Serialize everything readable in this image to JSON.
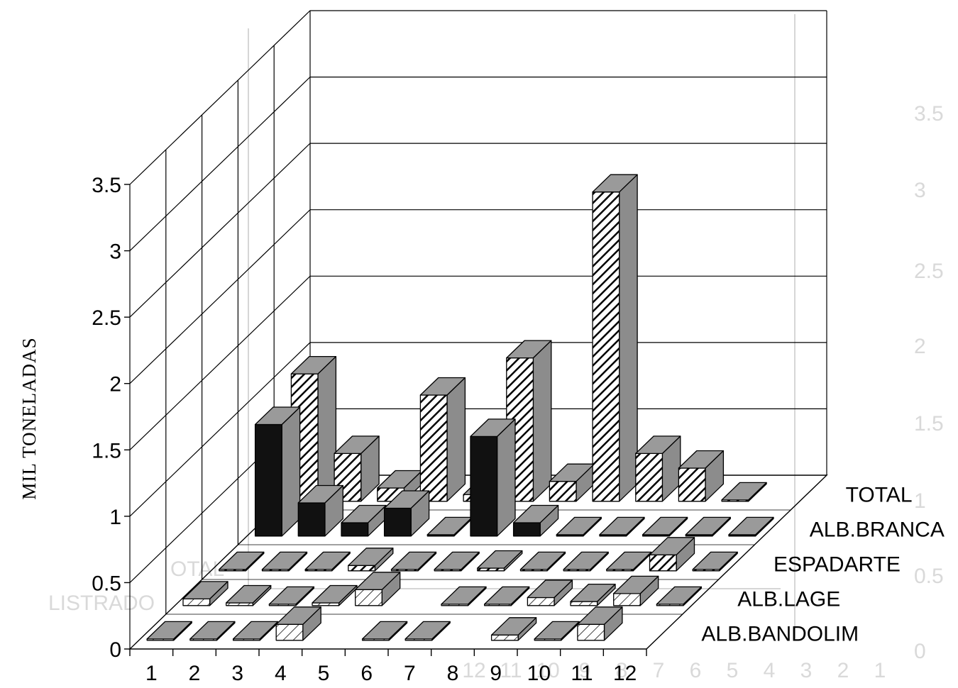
{
  "chart_data": {
    "type": "bar",
    "title": "",
    "xlabel": "",
    "ylabel": "MIL TONELADAS",
    "ylim": [
      0,
      3.5
    ],
    "yticks": [
      "0",
      "0.5",
      "1",
      "1.5",
      "2",
      "2.5",
      "3",
      "3.5"
    ],
    "categories": [
      "1",
      "2",
      "3",
      "4",
      "5",
      "6",
      "7",
      "8",
      "9",
      "10",
      "11",
      "12"
    ],
    "series": [
      {
        "name": "ALB.BANDOLIM",
        "values": [
          0.01,
          0.01,
          0.01,
          0.12,
          null,
          0.01,
          0.01,
          null,
          0.04,
          0.01,
          0.12,
          null
        ]
      },
      {
        "name": "ALB.LAGE",
        "values": [
          0.05,
          0.02,
          0.01,
          0.02,
          0.12,
          null,
          0.01,
          0.01,
          0.06,
          0.03,
          0.09,
          0.01
        ]
      },
      {
        "name": "ESPADARTE",
        "values": [
          0.01,
          0.01,
          0.01,
          0.04,
          0.01,
          0.01,
          0.02,
          0.01,
          0.01,
          0.01,
          0.12,
          0.01
        ]
      },
      {
        "name": "ALB.BRANCA",
        "values": [
          0.84,
          0.25,
          0.1,
          0.21,
          0.01,
          0.75,
          0.1,
          0.01,
          0.01,
          0.01,
          0.01,
          0.01
        ]
      },
      {
        "name": "TOTAL",
        "values": [
          0.96,
          0.36,
          0.1,
          0.8,
          0.05,
          1.08,
          0.15,
          2.33,
          0.36,
          0.25,
          0.01,
          null
        ]
      }
    ],
    "series_fills": {
      "ALB.BANDOLIM": "hatch-light",
      "ALB.LAGE": "hatch-light",
      "ESPADARTE": "hatch-dense",
      "ALB.BRANCA": "solid-black",
      "TOTAL": "hatch-dense"
    },
    "colors": {
      "side": "#8c8c8c",
      "top": "#9a9a9a",
      "lines": "#000000",
      "ghost": "#d6d6d6"
    }
  },
  "ghost_bleedthrough": {
    "y_ticks": [
      "3.5",
      "3",
      "2.5",
      "2",
      "1.5",
      "1",
      "0.5",
      "0"
    ],
    "x_ticks": [
      "1",
      "2",
      "3",
      "4",
      "5",
      "6",
      "7",
      "8",
      "9",
      "10",
      "11",
      "12"
    ],
    "words": [
      "OTAL",
      "LISTRADO"
    ]
  }
}
